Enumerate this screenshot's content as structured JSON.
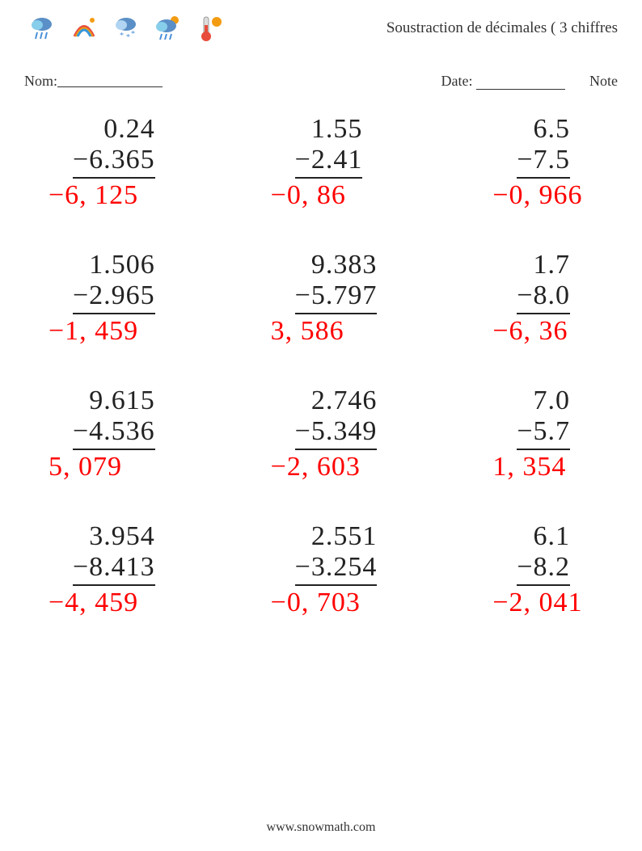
{
  "header": {
    "title_right": "Soustraction de décimales ( 3 chiffres",
    "icons": [
      {
        "name": "rain-cloud-icon",
        "fg": "#4a90d9",
        "accent": "#5b8fc7"
      },
      {
        "name": "rainbow-icon",
        "fg": "#e74c3c",
        "accent": "#f39c12"
      },
      {
        "name": "snow-cloud-icon",
        "fg": "#4a90d9",
        "accent": "#87ceeb"
      },
      {
        "name": "rain-cloud-2-icon",
        "fg": "#4a90d9",
        "accent": "#5b8fc7"
      },
      {
        "name": "thermometer-icon",
        "fg": "#e74c3c",
        "accent": "#f39c12"
      }
    ]
  },
  "info": {
    "name_label": "Nom:",
    "date_label": "Date:",
    "note_label": "Note"
  },
  "styling": {
    "page_bg": "#ffffff",
    "text_color": "#222222",
    "answer_color": "#ff0000",
    "line_color": "#222222",
    "operand_fontsize": 34,
    "header_fontsize": 19,
    "info_fontsize": 18,
    "footer_fontsize": 16,
    "font_family": "Georgia, Times New Roman, serif"
  },
  "problems": [
    [
      {
        "op1": "0.24",
        "op2": "−6.365",
        "ans": "−6, 125"
      },
      {
        "op1": "1.55",
        "op2": "−2.41",
        "ans": "−0, 86"
      },
      {
        "op1": "6.5",
        "op2": "−7.5",
        "ans": "−0, 966"
      }
    ],
    [
      {
        "op1": "1.506",
        "op2": "−2.965",
        "ans": "−1, 459"
      },
      {
        "op1": "9.383",
        "op2": "−5.797",
        "ans": "3, 586"
      },
      {
        "op1": "1.7",
        "op2": "−8.0",
        "ans": "−6, 36"
      }
    ],
    [
      {
        "op1": "9.615",
        "op2": "−4.536",
        "ans": "5, 079"
      },
      {
        "op1": "2.746",
        "op2": "−5.349",
        "ans": "−2, 603"
      },
      {
        "op1": "7.0",
        "op2": "−5.7",
        "ans": "1, 354"
      }
    ],
    [
      {
        "op1": "3.954",
        "op2": "−8.413",
        "ans": "−4, 459"
      },
      {
        "op1": "2.551",
        "op2": "−3.254",
        "ans": "−0, 703"
      },
      {
        "op1": "6.1",
        "op2": "−8.2",
        "ans": "−2, 041"
      }
    ]
  ],
  "footer": {
    "url": "www.snowmath.com"
  }
}
